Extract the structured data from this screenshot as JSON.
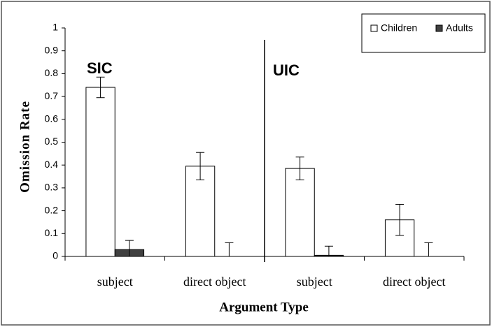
{
  "chart_data": {
    "type": "bar",
    "y_label": "Omission Rate",
    "x_label": "Argument Type",
    "annotations": [
      "SIC",
      "UIC"
    ],
    "categories": [
      "subject",
      "direct object",
      "subject",
      "direct object"
    ],
    "series": [
      {
        "name": "Children",
        "color": "#ffffff",
        "values": [
          0.74,
          0.395,
          0.385,
          0.16
        ],
        "errors": [
          0.045,
          0.06,
          0.05,
          0.068
        ]
      },
      {
        "name": "Adults",
        "color": "#404040",
        "values": [
          0.03,
          0,
          0.005,
          0
        ],
        "errors": [
          0.04,
          0.06,
          0.04,
          0.06
        ]
      }
    ],
    "ylim": [
      0,
      1
    ],
    "yticks": [
      0,
      0.1,
      0.2,
      0.3,
      0.4,
      0.5,
      0.6,
      0.7,
      0.8,
      0.9,
      1
    ],
    "legend": "upper right"
  }
}
